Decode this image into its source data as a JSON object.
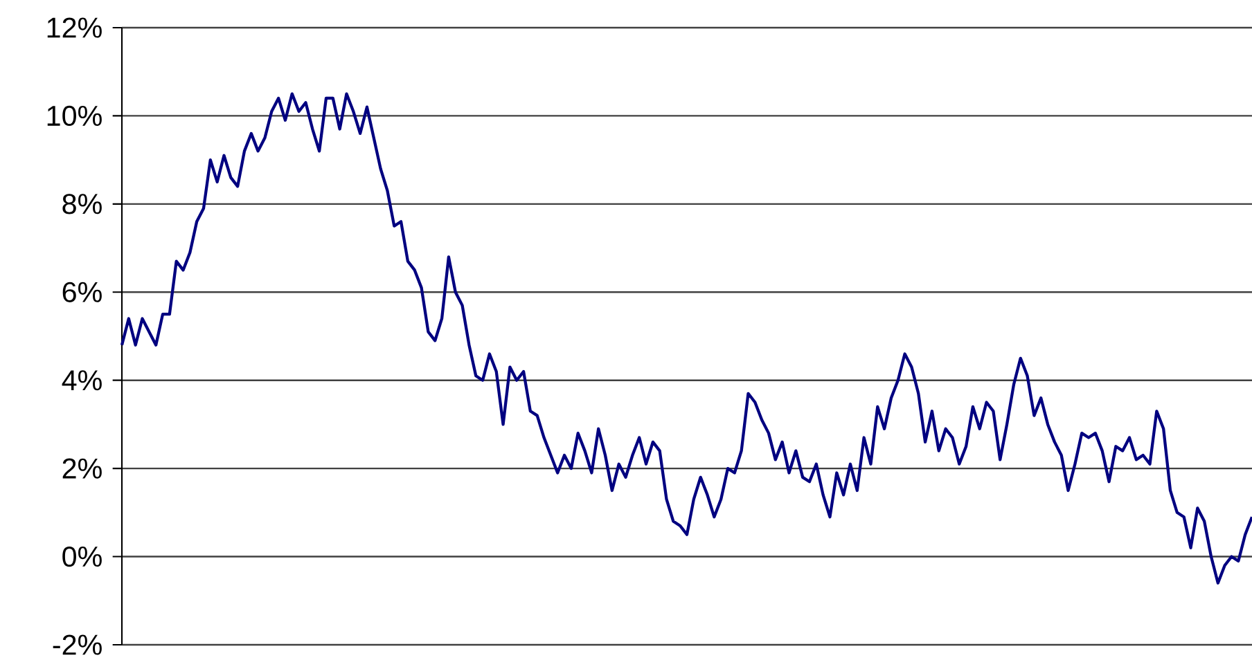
{
  "chart_data": {
    "type": "line",
    "categories": [
      null,
      null,
      null,
      null,
      null,
      null,
      null,
      null,
      null,
      null,
      null,
      null,
      null,
      null,
      null,
      null,
      null,
      null,
      null,
      null,
      null,
      null,
      null,
      null,
      null,
      null,
      null,
      null,
      null,
      null,
      null,
      null,
      null,
      null,
      null,
      null,
      null,
      null,
      null,
      null,
      null,
      null,
      null,
      null,
      null,
      null,
      null,
      null,
      null,
      null,
      null,
      null,
      null,
      null,
      null,
      null,
      null,
      null,
      null,
      null,
      null,
      null,
      null,
      null,
      null,
      null,
      null,
      null,
      null,
      null,
      null,
      null,
      null,
      null,
      null,
      null,
      null,
      null,
      null,
      null,
      null,
      null,
      null,
      null,
      null,
      null,
      null,
      null,
      null,
      null,
      null,
      null,
      null,
      null,
      null,
      null,
      null,
      null,
      null,
      null,
      null,
      null,
      null,
      null,
      null,
      null,
      null,
      null,
      null,
      null,
      null,
      null,
      null,
      null,
      null,
      null,
      null,
      null,
      null,
      null,
      null,
      null,
      null,
      null,
      null,
      null,
      null,
      null,
      null,
      null,
      null,
      null,
      null,
      null,
      null,
      null,
      null,
      null,
      null,
      null,
      null,
      null,
      null,
      null,
      null,
      null,
      null,
      null,
      null,
      null,
      null,
      null,
      null,
      null,
      null,
      null,
      null,
      null,
      null,
      null,
      null,
      null,
      null,
      null,
      null,
      null,
      null
    ],
    "series": [
      {
        "color": "#000080",
        "values": [
          4.8,
          5.4,
          4.8,
          5.4,
          5.1,
          4.8,
          5.5,
          5.5,
          6.7,
          6.5,
          6.9,
          7.6,
          7.9,
          9.0,
          8.5,
          9.1,
          8.6,
          8.4,
          9.2,
          9.6,
          9.2,
          9.5,
          10.1,
          10.4,
          9.9,
          10.5,
          10.1,
          10.3,
          9.7,
          9.2,
          10.4,
          10.4,
          9.7,
          10.5,
          10.1,
          9.6,
          10.2,
          9.5,
          8.8,
          8.3,
          7.5,
          7.6,
          6.7,
          6.5,
          6.1,
          5.1,
          4.9,
          5.4,
          6.8,
          6.0,
          5.7,
          4.8,
          4.1,
          4.0,
          4.6,
          4.2,
          3.0,
          4.3,
          4.0,
          4.2,
          3.3,
          3.2,
          2.7,
          2.3,
          1.9,
          2.3,
          2.0,
          2.8,
          2.4,
          1.9,
          2.9,
          2.3,
          1.5,
          2.1,
          1.8,
          2.3,
          2.7,
          2.1,
          2.6,
          2.4,
          1.3,
          0.8,
          0.7,
          0.5,
          1.3,
          1.8,
          1.4,
          0.9,
          1.3,
          2.0,
          1.9,
          2.4,
          3.7,
          3.5,
          3.1,
          2.8,
          2.2,
          2.6,
          1.9,
          2.4,
          1.8,
          1.7,
          2.1,
          1.4,
          0.9,
          1.9,
          1.4,
          2.1,
          1.5,
          2.7,
          2.1,
          3.4,
          2.9,
          3.6,
          4.0,
          4.6,
          4.3,
          3.7,
          2.6,
          3.3,
          2.4,
          2.9,
          2.7,
          2.1,
          2.5,
          3.4,
          2.9,
          3.5,
          3.3,
          2.2,
          3.0,
          3.9,
          4.5,
          4.1,
          3.2,
          3.6,
          3.0,
          2.6,
          2.3,
          1.5,
          2.1,
          2.8,
          2.7,
          2.8,
          2.4,
          1.7,
          2.5,
          2.4,
          2.7,
          2.2,
          2.3,
          2.1,
          3.3,
          2.9,
          1.5,
          1.0,
          0.9,
          0.2,
          1.1,
          0.8,
          0.0,
          -0.6,
          -0.2,
          0.0,
          -0.1,
          0.5,
          0.9
        ]
      }
    ],
    "ylim": [
      -2,
      12
    ],
    "yticks": [
      {
        "value": -2,
        "label": "-2%"
      },
      {
        "value": 0,
        "label": "0%"
      },
      {
        "value": 2,
        "label": "2%"
      },
      {
        "value": 4,
        "label": "4%"
      },
      {
        "value": 6,
        "label": "6%"
      },
      {
        "value": 8,
        "label": "8%"
      },
      {
        "value": 10,
        "label": "10%"
      },
      {
        "value": 12,
        "label": "12%"
      }
    ],
    "grid": "y",
    "tick_labels": "y",
    "marker": "none",
    "line_style": "solid"
  }
}
